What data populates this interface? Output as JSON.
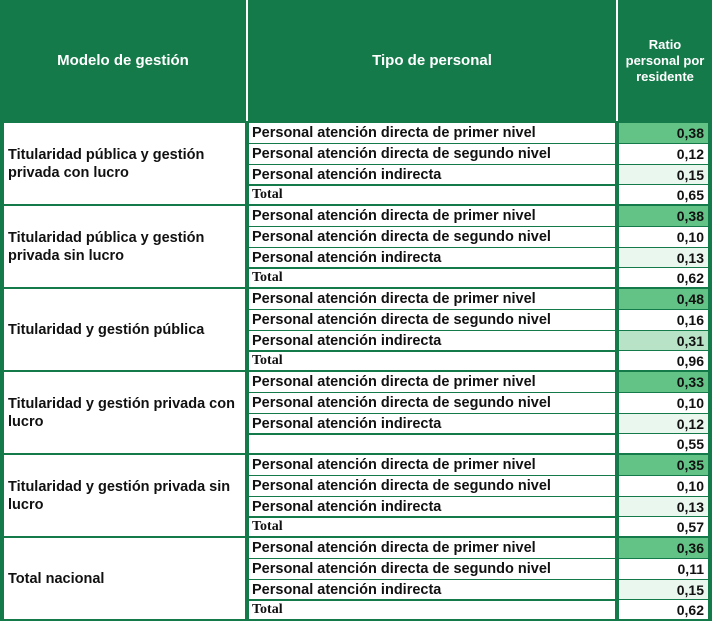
{
  "colors": {
    "header_bg": "#157a4a",
    "header_text": "#ffffff",
    "border": "#157a4a",
    "level_high": "#63c386",
    "level_mid": "#b9e3c7",
    "level_low": "#eaf7ee",
    "level_none": "#ffffff"
  },
  "table": {
    "headers": {
      "model": "Modelo de gestión",
      "type": "Tipo de personal",
      "ratio": "Ratio personal por residente"
    },
    "groups": [
      {
        "model": "Titularidad pública y gestión privada con lucro",
        "rows": [
          {
            "type": "Personal atención directa de primer nivel",
            "value": "0,38",
            "shade": "high"
          },
          {
            "type": "Personal atención directa de segundo nivel",
            "value": "0,12",
            "shade": "none"
          },
          {
            "type": "Personal atención indirecta",
            "value": "0,15",
            "shade": "low"
          },
          {
            "type": "Total",
            "value": "0,65",
            "shade": "none",
            "total": true
          }
        ]
      },
      {
        "model": "Titularidad pública y gestión privada sin lucro",
        "rows": [
          {
            "type": "Personal atención directa de primer nivel",
            "value": "0,38",
            "shade": "high"
          },
          {
            "type": "Personal atención directa de segundo nivel",
            "value": "0,10",
            "shade": "none"
          },
          {
            "type": "Personal atención indirecta",
            "value": "0,13",
            "shade": "low"
          },
          {
            "type": "Total",
            "value": "0,62",
            "shade": "none",
            "total": true
          }
        ]
      },
      {
        "model": "Titularidad y gestión pública",
        "rows": [
          {
            "type": "Personal atención directa de primer nivel",
            "value": "0,48",
            "shade": "high"
          },
          {
            "type": "Personal atención directa de segundo nivel",
            "value": "0,16",
            "shade": "none"
          },
          {
            "type": "Personal atención indirecta",
            "value": "0,31",
            "shade": "mid"
          },
          {
            "type": "Total",
            "value": "0,96",
            "shade": "none",
            "total": true
          }
        ]
      },
      {
        "model": "Titularidad y gestión privada con lucro",
        "rows": [
          {
            "type": "Personal atención directa de primer nivel",
            "value": "0,33",
            "shade": "high"
          },
          {
            "type": "Personal atención directa de segundo nivel",
            "value": "0,10",
            "shade": "none"
          },
          {
            "type": "Personal atención indirecta",
            "value": "0,12",
            "shade": "low"
          },
          {
            "type": "",
            "value": "0,55",
            "shade": "none",
            "total": true
          }
        ]
      },
      {
        "model": "Titularidad y gestión privada sin lucro",
        "rows": [
          {
            "type": "Personal atención directa de primer nivel",
            "value": "0,35",
            "shade": "high"
          },
          {
            "type": "Personal atención directa de segundo nivel",
            "value": "0,10",
            "shade": "none"
          },
          {
            "type": "Personal atención indirecta",
            "value": "0,13",
            "shade": "low"
          },
          {
            "type": "Total",
            "value": "0,57",
            "shade": "none",
            "total": true
          }
        ]
      },
      {
        "model": "Total nacional",
        "rows": [
          {
            "type": "Personal atención directa de primer nivel",
            "value": "0,36",
            "shade": "high"
          },
          {
            "type": "Personal atención directa de segundo nivel",
            "value": "0,11",
            "shade": "none"
          },
          {
            "type": "Personal atención indirecta",
            "value": "0,15",
            "shade": "low"
          },
          {
            "type": "Total",
            "value": "0,62",
            "shade": "none",
            "total": true
          }
        ]
      }
    ]
  }
}
